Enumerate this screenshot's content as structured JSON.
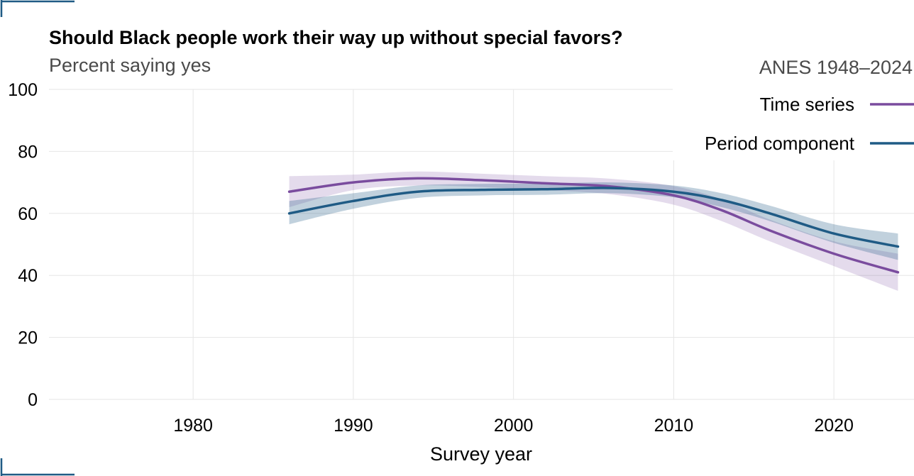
{
  "colors": {
    "time_series": "#7a4c9e",
    "period_component": "#1f5b85",
    "corner_marks": "#1f5b85",
    "grid": "#e6e6e6",
    "background": "#ffffff"
  },
  "chart_data": {
    "type": "line",
    "title": "Should Black people work their way up without special favors?",
    "subtitle": "Percent saying yes",
    "source_note": "ANES 1948–2024",
    "xlabel": "Survey year",
    "ylabel": "",
    "xlim": [
      1971,
      2025
    ],
    "ylim": [
      0,
      100
    ],
    "x_ticks": [
      1980,
      1990,
      2000,
      2010,
      2020
    ],
    "y_ticks": [
      0,
      20,
      40,
      60,
      80,
      100
    ],
    "grid": true,
    "legend_position": "top-right",
    "series": [
      {
        "name": "Time series",
        "color_key": "time_series",
        "points": [
          {
            "x": 1986,
            "y": 67.0,
            "lo": 62.0,
            "hi": 72.0
          },
          {
            "x": 1990,
            "y": 70.0,
            "lo": 67.5,
            "hi": 72.5
          },
          {
            "x": 1994,
            "y": 71.3,
            "lo": 69.0,
            "hi": 73.5
          },
          {
            "x": 1998,
            "y": 70.7,
            "lo": 68.5,
            "hi": 72.8
          },
          {
            "x": 2002,
            "y": 69.7,
            "lo": 67.5,
            "hi": 72.0
          },
          {
            "x": 2006,
            "y": 68.7,
            "lo": 66.2,
            "hi": 71.2
          },
          {
            "x": 2010,
            "y": 65.8,
            "lo": 62.8,
            "hi": 68.8
          },
          {
            "x": 2013,
            "y": 61.0,
            "lo": 57.5,
            "hi": 64.5
          },
          {
            "x": 2016,
            "y": 54.5,
            "lo": 51.0,
            "hi": 58.0
          },
          {
            "x": 2020,
            "y": 47.0,
            "lo": 43.0,
            "hi": 51.0
          },
          {
            "x": 2024,
            "y": 41.0,
            "lo": 35.0,
            "hi": 47.0
          }
        ]
      },
      {
        "name": "Period component",
        "color_key": "period_component",
        "points": [
          {
            "x": 1986,
            "y": 60.0,
            "lo": 56.5,
            "hi": 64.0
          },
          {
            "x": 1990,
            "y": 64.0,
            "lo": 61.5,
            "hi": 66.5
          },
          {
            "x": 1994,
            "y": 67.0,
            "lo": 65.0,
            "hi": 69.0
          },
          {
            "x": 1998,
            "y": 67.6,
            "lo": 65.8,
            "hi": 69.5
          },
          {
            "x": 2002,
            "y": 67.8,
            "lo": 66.0,
            "hi": 69.6
          },
          {
            "x": 2006,
            "y": 68.2,
            "lo": 66.5,
            "hi": 70.0
          },
          {
            "x": 2010,
            "y": 67.0,
            "lo": 65.2,
            "hi": 69.0
          },
          {
            "x": 2013,
            "y": 64.3,
            "lo": 62.0,
            "hi": 66.5
          },
          {
            "x": 2016,
            "y": 60.0,
            "lo": 57.5,
            "hi": 62.5
          },
          {
            "x": 2020,
            "y": 53.5,
            "lo": 50.5,
            "hi": 56.5
          },
          {
            "x": 2024,
            "y": 49.3,
            "lo": 45.0,
            "hi": 53.5
          }
        ]
      }
    ]
  }
}
